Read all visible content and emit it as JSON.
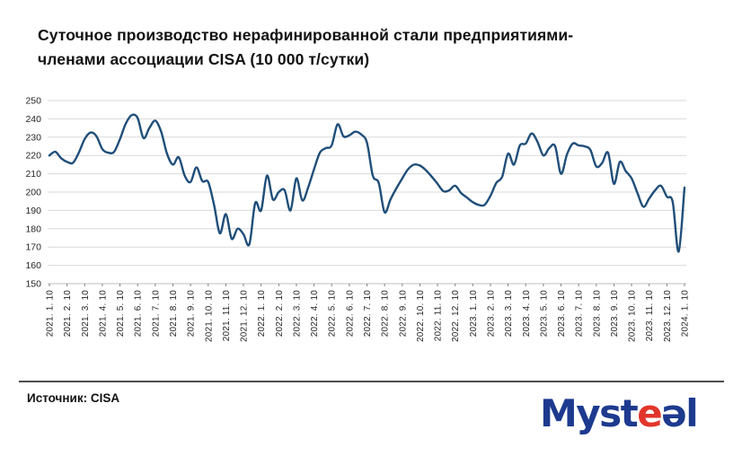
{
  "page": {
    "title_line1": "Суточное производство нерафинированной стали предприятиями-",
    "title_line2": "членами ассоциации CISA (10 000 т/сутки)",
    "source_label": "Источник: CISA",
    "logo": {
      "part_myst": "Myst",
      "part_e_red": "e",
      "part_e_turned": "ǝ",
      "part_l": "l",
      "color_blue": "#1d3a8f",
      "color_red": "#e2352b"
    }
  },
  "chart_data": {
    "type": "line",
    "title": "Суточное производство нерафинированной стали предприятиями-членами ассоциации CISA (10 000 т/сутки)",
    "unit": "10 000 т/сутки",
    "grid": true,
    "legend": "none",
    "line_color": "#1f4e79",
    "gridline_color": "#d9d9d9",
    "axis_color": "#bfbfbf",
    "tick_color": "#808080",
    "label_color": "#262626",
    "ylim": [
      150,
      250
    ],
    "y_ticks": [
      150,
      160,
      170,
      180,
      190,
      200,
      210,
      220,
      230,
      240,
      250
    ],
    "x_tick_labels": [
      "2021. 1. 10",
      "2021. 2. 10",
      "2021. 3. 10",
      "2021. 4. 10",
      "2021. 5. 10",
      "2021. 6. 10",
      "2021. 7. 10",
      "2021. 8. 10",
      "2021. 9. 10",
      "2021. 10. 10",
      "2021. 11. 10",
      "2021. 12. 10",
      "2022. 1. 10",
      "2022. 2. 10",
      "2022. 3. 10",
      "2022. 4. 10",
      "2022. 5. 10",
      "2022. 6. 10",
      "2022. 7. 10",
      "2022. 8. 10",
      "2022. 9. 10",
      "2022. 10. 10",
      "2022. 11. 10",
      "2022. 12. 10",
      "2023. 1. 10",
      "2023. 2. 10",
      "2023. 3. 10",
      "2023. 4. 10",
      "2023. 5. 10",
      "2023. 6. 10",
      "2023. 7. 10",
      "2023. 8. 10",
      "2023. 9. 10",
      "2023. 10. 10",
      "2023. 11. 10",
      "2023. 12. 10",
      "2024. 1. 10"
    ],
    "x_tick_every_n_points": 3,
    "dates": [
      "2021.1.10",
      "2021.1.20",
      "2021.1.31",
      "2021.2.10",
      "2021.2.20",
      "2021.2.28",
      "2021.3.10",
      "2021.3.20",
      "2021.3.31",
      "2021.4.10",
      "2021.4.20",
      "2021.4.30",
      "2021.5.10",
      "2021.5.20",
      "2021.5.31",
      "2021.6.10",
      "2021.6.20",
      "2021.6.30",
      "2021.7.10",
      "2021.7.20",
      "2021.7.31",
      "2021.8.10",
      "2021.8.20",
      "2021.8.31",
      "2021.9.10",
      "2021.9.20",
      "2021.9.30",
      "2021.10.10",
      "2021.10.20",
      "2021.10.31",
      "2021.11.10",
      "2021.11.20",
      "2021.11.30",
      "2021.12.10",
      "2021.12.20",
      "2021.12.31",
      "2022.1.10",
      "2022.1.20",
      "2022.1.31",
      "2022.2.10",
      "2022.2.20",
      "2022.2.28",
      "2022.3.10",
      "2022.3.20",
      "2022.3.31",
      "2022.4.10",
      "2022.4.20",
      "2022.4.30",
      "2022.5.10",
      "2022.5.20",
      "2022.5.31",
      "2022.6.10",
      "2022.6.20",
      "2022.6.30",
      "2022.7.10",
      "2022.7.20",
      "2022.7.31",
      "2022.8.10",
      "2022.8.20",
      "2022.8.31",
      "2022.9.10",
      "2022.9.20",
      "2022.9.30",
      "2022.10.10",
      "2022.10.20",
      "2022.10.31",
      "2022.11.10",
      "2022.11.20",
      "2022.11.30",
      "2022.12.10",
      "2022.12.20",
      "2022.12.31",
      "2023.1.10",
      "2023.1.20",
      "2023.1.31",
      "2023.2.10",
      "2023.2.20",
      "2023.2.28",
      "2023.3.10",
      "2023.3.20",
      "2023.3.31",
      "2023.4.10",
      "2023.4.20",
      "2023.4.30",
      "2023.5.10",
      "2023.5.20",
      "2023.5.31",
      "2023.6.10",
      "2023.6.20",
      "2023.6.30",
      "2023.7.10",
      "2023.7.20",
      "2023.7.31",
      "2023.8.10",
      "2023.8.20",
      "2023.8.31",
      "2023.9.10",
      "2023.9.20",
      "2023.9.30",
      "2023.10.10",
      "2023.10.20",
      "2023.10.31",
      "2023.11.10",
      "2023.11.20",
      "2023.11.30",
      "2023.12.10",
      "2023.12.20",
      "2023.12.31",
      "2024.1.10"
    ],
    "values": [
      220,
      222,
      218.5,
      216.5,
      216,
      221.5,
      229,
      232.5,
      230.5,
      223.5,
      221.5,
      222,
      229,
      237.5,
      242,
      240.5,
      229.5,
      235,
      239,
      233,
      221,
      215,
      219,
      209,
      205.5,
      213.5,
      206,
      205.5,
      193,
      177.5,
      188,
      174.5,
      180,
      177,
      171.5,
      194,
      190,
      209,
      196,
      200,
      201,
      190,
      207.5,
      195.5,
      202.5,
      212.5,
      221.5,
      224,
      225.5,
      237,
      230.5,
      231,
      233,
      231.5,
      227,
      209,
      205,
      189,
      196,
      202,
      207.5,
      212.5,
      215,
      214.5,
      212,
      208.5,
      204.5,
      200.5,
      201,
      203.5,
      199.5,
      197,
      194.5,
      193,
      193,
      198,
      205,
      208.5,
      221,
      215,
      225.5,
      226.5,
      232,
      227.5,
      220,
      224,
      225,
      210,
      220.5,
      226.5,
      225.5,
      225,
      223,
      214,
      216,
      221.5,
      204.5,
      216.5,
      211.5,
      207.5,
      199.5,
      192,
      196.5,
      201,
      203.5,
      197.5,
      194.5,
      167.5,
      202.5
    ]
  }
}
